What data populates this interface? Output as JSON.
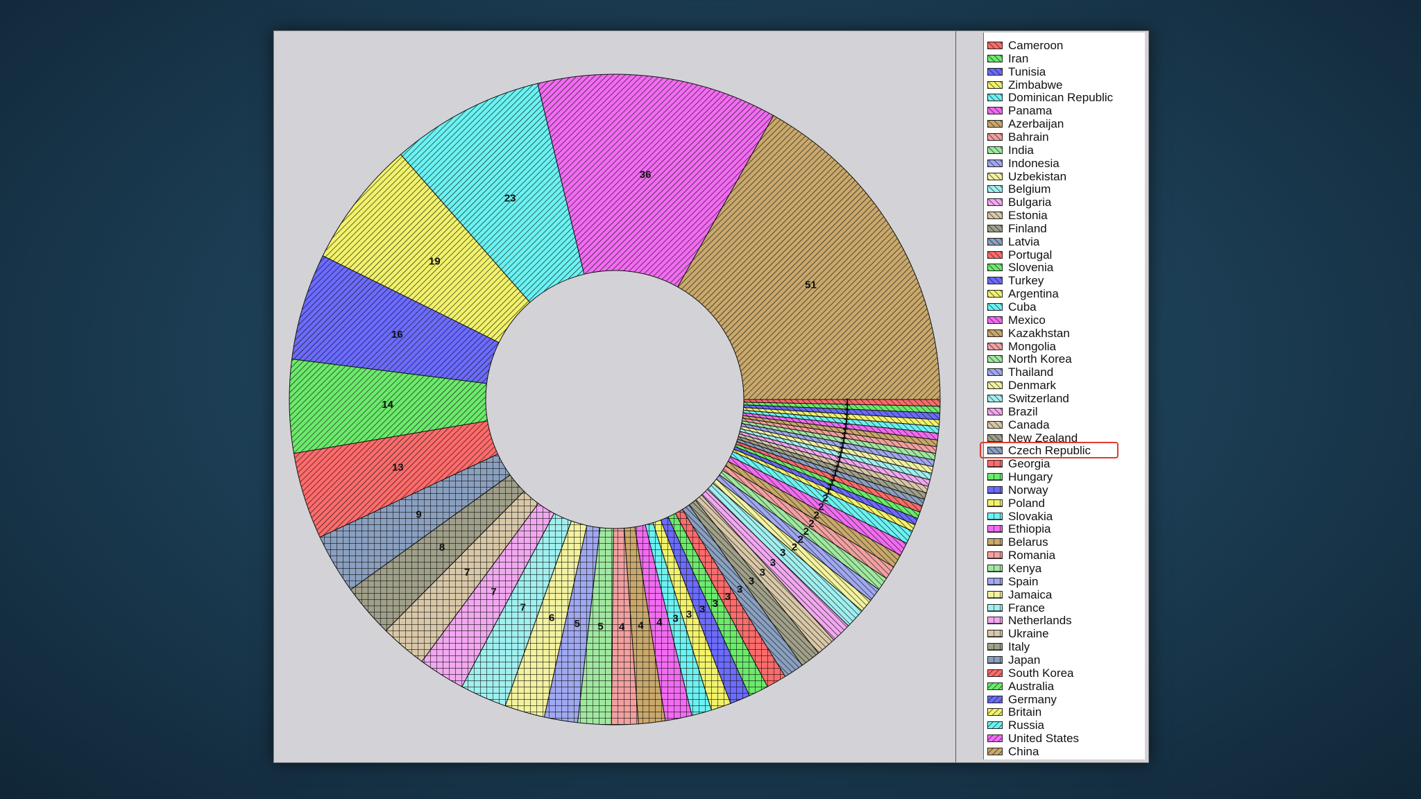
{
  "chart_data": {
    "type": "pie",
    "donut": true,
    "legend_position": "right",
    "highlighted_item": "Czech Republic",
    "slices": [
      {
        "label": "Cameroon",
        "value": 1,
        "color": "#ff6b6b",
        "pattern": "diag"
      },
      {
        "label": "Iran",
        "value": 1,
        "color": "#6bea6b",
        "pattern": "diag"
      },
      {
        "label": "Tunisia",
        "value": 1,
        "color": "#6b6bff",
        "pattern": "diag"
      },
      {
        "label": "Zimbabwe",
        "value": 1,
        "color": "#f2f26b",
        "pattern": "diag"
      },
      {
        "label": "Dominican Republic",
        "value": 1,
        "color": "#6bf2f2",
        "pattern": "diag"
      },
      {
        "label": "Panama",
        "value": 1,
        "color": "#f26bf2",
        "pattern": "diag"
      },
      {
        "label": "Azerbaijan",
        "value": 1,
        "color": "#c9a86b",
        "pattern": "diag"
      },
      {
        "label": "Bahrain",
        "value": 1,
        "color": "#f2a0a0",
        "pattern": "diag"
      },
      {
        "label": "India",
        "value": 1,
        "color": "#a0e8a0",
        "pattern": "diag"
      },
      {
        "label": "Indonesia",
        "value": 1,
        "color": "#a0a8f0",
        "pattern": "diag"
      },
      {
        "label": "Uzbekistan",
        "value": 1,
        "color": "#f2f2a0",
        "pattern": "diag"
      },
      {
        "label": "Belgium",
        "value": 1,
        "color": "#a0f0f0",
        "pattern": "diag"
      },
      {
        "label": "Bulgaria",
        "value": 1,
        "color": "#f2a8f0",
        "pattern": "diag"
      },
      {
        "label": "Estonia",
        "value": 1,
        "color": "#d9c8a8",
        "pattern": "diag"
      },
      {
        "label": "Finland",
        "value": 1,
        "color": "#a0a08a",
        "pattern": "diag"
      },
      {
        "label": "Latvia",
        "value": 1,
        "color": "#8aa0c0",
        "pattern": "diag"
      },
      {
        "label": "Portugal",
        "value": 1,
        "color": "#ff6b6b",
        "pattern": "diag"
      },
      {
        "label": "Slovenia",
        "value": 1,
        "color": "#6bea6b",
        "pattern": "diag"
      },
      {
        "label": "Turkey",
        "value": 1,
        "color": "#6b6bff",
        "pattern": "diag"
      },
      {
        "label": "Argentina",
        "value": 1,
        "color": "#f2f26b",
        "pattern": "diag"
      },
      {
        "label": "Cuba",
        "value": 2,
        "color": "#6bf2f2",
        "pattern": "diag"
      },
      {
        "label": "Mexico",
        "value": 2,
        "color": "#f26bf2",
        "pattern": "diag"
      },
      {
        "label": "Kazakhstan",
        "value": 2,
        "color": "#c9a86b",
        "pattern": "diag"
      },
      {
        "label": "Mongolia",
        "value": 2,
        "color": "#f2a0a0",
        "pattern": "diag"
      },
      {
        "label": "North Korea",
        "value": 2,
        "color": "#a0e8a0",
        "pattern": "diag"
      },
      {
        "label": "Thailand",
        "value": 2,
        "color": "#a0a8f0",
        "pattern": "diag"
      },
      {
        "label": "Denmark",
        "value": 2,
        "color": "#f2f2a0",
        "pattern": "diag"
      },
      {
        "label": "Switzerland",
        "value": 3,
        "color": "#a0f0f0",
        "pattern": "diag"
      },
      {
        "label": "Brazil",
        "value": 3,
        "color": "#f2a8f0",
        "pattern": "diag"
      },
      {
        "label": "Canada",
        "value": 3,
        "color": "#d9c8a8",
        "pattern": "diag"
      },
      {
        "label": "New Zealand",
        "value": 3,
        "color": "#a0a08a",
        "pattern": "diag"
      },
      {
        "label": "Czech Republic",
        "value": 3,
        "color": "#8aa0c0",
        "pattern": "diag"
      },
      {
        "label": "Georgia",
        "value": 3,
        "color": "#ff6b6b",
        "pattern": "grid"
      },
      {
        "label": "Hungary",
        "value": 3,
        "color": "#6bea6b",
        "pattern": "grid"
      },
      {
        "label": "Norway",
        "value": 3,
        "color": "#6b6bff",
        "pattern": "grid"
      },
      {
        "label": "Poland",
        "value": 3,
        "color": "#f2f26b",
        "pattern": "grid"
      },
      {
        "label": "Slovakia",
        "value": 3,
        "color": "#6bf2f2",
        "pattern": "grid"
      },
      {
        "label": "Ethiopia",
        "value": 4,
        "color": "#f26bf2",
        "pattern": "grid"
      },
      {
        "label": "Belarus",
        "value": 4,
        "color": "#c9a86b",
        "pattern": "grid"
      },
      {
        "label": "Romania",
        "value": 4,
        "color": "#f2a0a0",
        "pattern": "grid"
      },
      {
        "label": "Kenya",
        "value": 5,
        "color": "#a0e8a0",
        "pattern": "grid"
      },
      {
        "label": "Spain",
        "value": 5,
        "color": "#a0a8f0",
        "pattern": "grid"
      },
      {
        "label": "Jamaica",
        "value": 6,
        "color": "#f2f2a0",
        "pattern": "grid"
      },
      {
        "label": "France",
        "value": 7,
        "color": "#a0f0f0",
        "pattern": "grid"
      },
      {
        "label": "Netherlands",
        "value": 7,
        "color": "#f2a8f0",
        "pattern": "grid"
      },
      {
        "label": "Ukraine",
        "value": 7,
        "color": "#d9c8a8",
        "pattern": "grid"
      },
      {
        "label": "Italy",
        "value": 8,
        "color": "#a0a08a",
        "pattern": "grid"
      },
      {
        "label": "Japan",
        "value": 9,
        "color": "#8aa0c0",
        "pattern": "grid"
      },
      {
        "label": "South Korea",
        "value": 13,
        "color": "#ff6b6b",
        "pattern": "diag2"
      },
      {
        "label": "Australia",
        "value": 14,
        "color": "#6bea6b",
        "pattern": "diag2"
      },
      {
        "label": "Germany",
        "value": 16,
        "color": "#6b6bff",
        "pattern": "diag2"
      },
      {
        "label": "Britain",
        "value": 19,
        "color": "#f2f26b",
        "pattern": "diag2"
      },
      {
        "label": "Russia",
        "value": 23,
        "color": "#6bf2f2",
        "pattern": "diag2"
      },
      {
        "label": "United States",
        "value": 36,
        "color": "#f26bf2",
        "pattern": "diag2"
      },
      {
        "label": "China",
        "value": 51,
        "color": "#c9a86b",
        "pattern": "diag2"
      }
    ]
  }
}
